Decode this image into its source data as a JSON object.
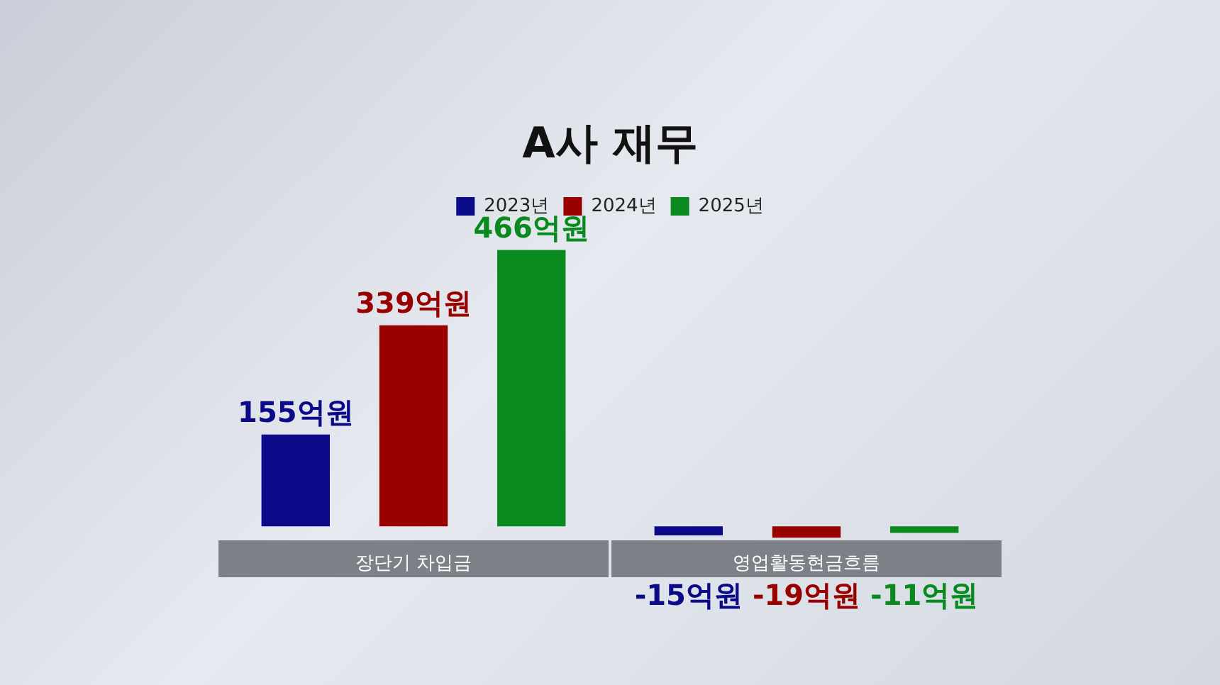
{
  "chart_data": {
    "type": "bar",
    "title": "A사 재무",
    "categories": [
      "장단기 차입금",
      "영업활동현금흐름"
    ],
    "series": [
      {
        "name": "2023년",
        "color": "#0b0b8a",
        "values": [
          155,
          -15
        ],
        "value_labels": [
          "155억원",
          "-15억원"
        ]
      },
      {
        "name": "2024년",
        "color": "#990000",
        "values": [
          339,
          -19
        ],
        "value_labels": [
          "339억원",
          "-19억원"
        ]
      },
      {
        "name": "2025년",
        "color": "#0a8a1e",
        "values": [
          466,
          -11
        ],
        "value_labels": [
          "466억원",
          "-11억원"
        ]
      }
    ],
    "legend": "top"
  }
}
